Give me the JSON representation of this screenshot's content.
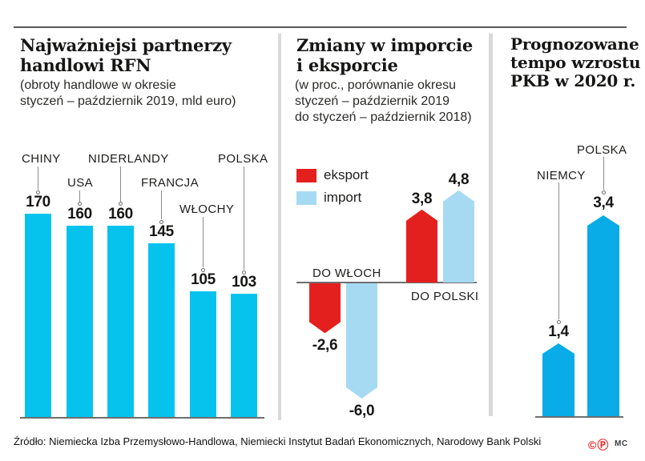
{
  "colors": {
    "cyan_left": "#06c3ee",
    "cyan_right": "#09ace6",
    "red": "#e4201f",
    "light_blue": "#a6daf2",
    "rule": "#57575a",
    "divider": "#d9d9d9",
    "axis": "#6e6e6e",
    "leader": "#8c8c8c",
    "text": "#1d1d1b"
  },
  "panels": {
    "left": {
      "title_lines": [
        "Najważniejsi partnerzy",
        "handlowi RFN"
      ],
      "subtitle_lines": [
        "(obroty handlowe w okresie",
        "styczeń – październik 2019, mld euro)"
      ]
    },
    "middle": {
      "title_lines": [
        "Zmiany w imporcie",
        "i eksporcie"
      ],
      "subtitle_lines": [
        "(w proc., porównanie okresu",
        "styczeń – październik 2019",
        "do styczeń – październik 2018)"
      ],
      "legend": [
        {
          "label": "eksport",
          "color": "#e4201f"
        },
        {
          "label": "import",
          "color": "#a6daf2"
        }
      ]
    },
    "right": {
      "title_lines": [
        "Prognozowane",
        "tempo wzrostu",
        "PKB w 2020 r."
      ]
    }
  },
  "chart_data": [
    {
      "type": "bar",
      "title": "Najważniejsi partnerzy handlowi RFN",
      "subtitle": "(obroty handlowe w okresie styczeń – październik 2019, mld euro)",
      "categories": [
        "CHINY",
        "USA",
        "NIDERLANDY",
        "FRANCJA",
        "WŁOCHY",
        "POLSKA"
      ],
      "values": [
        170,
        160,
        160,
        145,
        105,
        103
      ],
      "value_labels": [
        "170",
        "160",
        "160",
        "145",
        "105",
        "103"
      ],
      "unit": "mld euro",
      "bar_color": "#06c3ee",
      "ylim": [
        0,
        170
      ],
      "grid": false,
      "legend_position": "none"
    },
    {
      "type": "bar",
      "title": "Zmiany w imporcie i eksporcie",
      "subtitle": "(w proc., porównanie okresu styczeń – październik 2019 do styczeń – październik 2018)",
      "categories": [
        "DO WŁOCH",
        "DO POLSKI"
      ],
      "series": [
        {
          "name": "eksport",
          "color": "#e4201f",
          "values": [
            -2.6,
            3.8
          ],
          "value_labels": [
            "-2,6",
            "3,8"
          ]
        },
        {
          "name": "import",
          "color": "#a6daf2",
          "values": [
            -6.0,
            4.8
          ],
          "value_labels": [
            "-6,0",
            "4,8"
          ]
        }
      ],
      "unit": "proc.",
      "ylim": [
        -6.5,
        5.5
      ],
      "grid": false,
      "legend_position": "top-left"
    },
    {
      "type": "bar",
      "title": "Prognozowane tempo wzrostu PKB w 2020 r.",
      "categories": [
        "NIEMCY",
        "POLSKA"
      ],
      "values": [
        1.4,
        3.4
      ],
      "value_labels": [
        "1,4",
        "3,4"
      ],
      "unit": "proc.",
      "bar_color": "#09ace6",
      "grid": false,
      "legend_position": "none"
    }
  ],
  "footer": {
    "source": "Źródło: Niemiecka Izba Przemysłowo-Handlowa, Niemiecki Instytut Badań Ekonomicznych, Narodowy Bank Polski",
    "copyright_c": "©",
    "copyright_p": "Ⓟ",
    "credit": "MC"
  }
}
